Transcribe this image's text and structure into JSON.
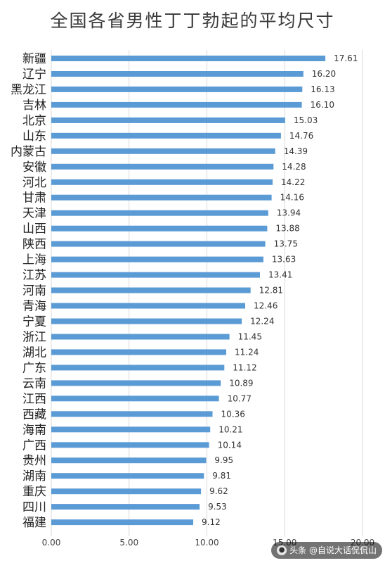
{
  "chart_data": {
    "type": "bar",
    "orientation": "horizontal",
    "title": "全国各省男性丁丁勃起的平均尺寸",
    "categories": [
      "新疆",
      "辽宁",
      "黑龙江",
      "吉林",
      "北京",
      "山东",
      "内蒙古",
      "安徽",
      "河北",
      "甘肃",
      "天津",
      "山西",
      "陕西",
      "上海",
      "江苏",
      "河南",
      "青海",
      "宁夏",
      "浙江",
      "湖北",
      "广东",
      "云南",
      "江西",
      "西藏",
      "海南",
      "广西",
      "贵州",
      "湖南",
      "重庆",
      "四川",
      "福建"
    ],
    "values": [
      17.61,
      16.2,
      16.13,
      16.1,
      15.03,
      14.76,
      14.39,
      14.28,
      14.22,
      14.16,
      13.94,
      13.88,
      13.75,
      13.63,
      13.41,
      12.81,
      12.46,
      12.24,
      11.45,
      11.24,
      11.12,
      10.89,
      10.77,
      10.36,
      10.21,
      10.14,
      9.95,
      9.81,
      9.62,
      9.53,
      9.12
    ],
    "value_labels": [
      "17.61",
      "16.20",
      "16.13",
      "16.10",
      "15.03",
      "14.76",
      "14.39",
      "14.28",
      "14.22",
      "14.16",
      "13.94",
      "13.88",
      "13.75",
      "13.63",
      "13.41",
      "12.81",
      "12.46",
      "12.24",
      "11.45",
      "11.24",
      "11.12",
      "10.89",
      "10.77",
      "10.36",
      "10.21",
      "10.14",
      "9.95",
      "9.81",
      "9.62",
      "9.53",
      "9.12"
    ],
    "xlim": [
      0,
      20
    ],
    "xticks": [
      0,
      5,
      10,
      15,
      20
    ],
    "xtick_labels": [
      "0.00",
      "5.00",
      "10.00",
      "15.00",
      "20.00"
    ],
    "grid": true,
    "legend": "none",
    "bar_color": "#5b9bd5"
  },
  "watermark": {
    "text": "头条 @自说大话侃侃山",
    "icon": "avatar-icon"
  }
}
